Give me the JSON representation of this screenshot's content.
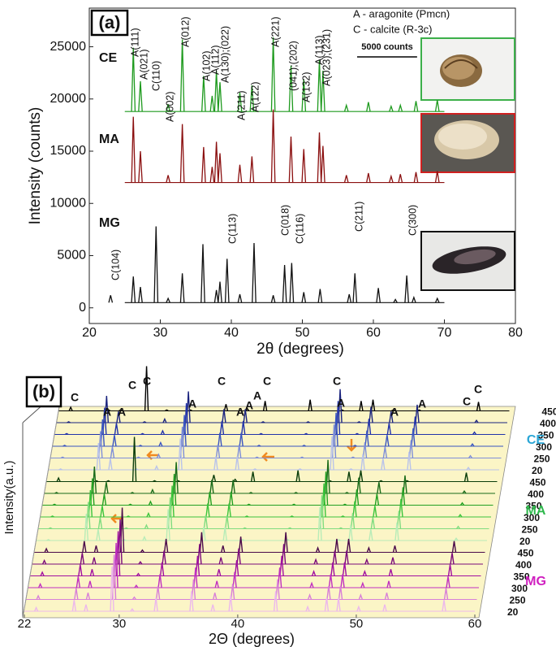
{
  "chart_data": [
    {
      "type": "line",
      "title": "(a)",
      "xlabel": "2θ (degrees)",
      "ylabel": "Intensity (counts)",
      "xlim": [
        20,
        80
      ],
      "xticks": [
        20,
        30,
        40,
        50,
        60,
        70,
        80
      ],
      "ylim": [
        -1500,
        28700
      ],
      "yticks": [
        0,
        5000,
        10000,
        15000,
        20000,
        25000
      ],
      "legend_notes": [
        "A - aragonite (Pmcn)",
        "C - calcite (R-3c)"
      ],
      "scale_bar": {
        "value": 5000,
        "label": "5000 counts"
      },
      "series": [
        {
          "name": "CE",
          "color": "#1e9a1e",
          "baseline": 18800,
          "x": [
            26.2,
            27.2,
            31.1,
            33.1,
            36.1,
            37.3,
            37.9,
            38.4,
            41.2,
            42.9,
            45.9,
            48.4,
            50.2,
            52.4,
            52.9,
            56.2,
            59.3,
            62.5,
            63.8,
            66.0,
            69.0
          ],
          "values": [
            24900,
            21700,
            19500,
            25700,
            22200,
            20300,
            22700,
            21600,
            20600,
            21300,
            25900,
            23200,
            21900,
            23700,
            22700,
            19400,
            19700,
            19300,
            19400,
            19800,
            19900
          ]
        },
        {
          "name": "MA",
          "color": "#8b1010",
          "baseline": 12000,
          "x": [
            26.2,
            27.2,
            31.1,
            33.1,
            36.1,
            37.3,
            37.9,
            38.4,
            41.2,
            42.9,
            45.9,
            48.4,
            50.2,
            52.4,
            52.9,
            56.2,
            59.3,
            62.5,
            63.8,
            66.0,
            69.0
          ],
          "values": [
            18300,
            15000,
            12700,
            17600,
            15400,
            13500,
            15900,
            14800,
            13700,
            14500,
            19000,
            16400,
            15200,
            16800,
            15500,
            12700,
            12900,
            12600,
            12800,
            13000,
            13100
          ]
        },
        {
          "name": "MG",
          "color": "#111111",
          "baseline": 500,
          "x": [
            23.0,
            26.2,
            27.2,
            29.4,
            31.1,
            33.1,
            36.0,
            37.9,
            38.4,
            39.4,
            41.2,
            43.2,
            45.9,
            47.5,
            48.5,
            50.2,
            52.5,
            56.6,
            57.4,
            60.7,
            63.1,
            64.7,
            65.7,
            69.0
          ],
          "values": [
            1200,
            3000,
            2000,
            7800,
            900,
            3300,
            6100,
            1700,
            2500,
            4700,
            1300,
            6200,
            1200,
            4100,
            4300,
            1500,
            1800,
            1300,
            3300,
            1900,
            800,
            3100,
            1000,
            900
          ]
        }
      ],
      "annotations": [
        "A(111)",
        "A(021)",
        "A(002)",
        "A(012)",
        "A(102)",
        "A(112)",
        "A(130);(022)",
        "A(211)",
        "A(122)",
        "A(221)",
        "(041);(202)",
        "A(132)",
        "A(113)",
        "A(023);(231)",
        "C(104)",
        "C(110)",
        "C(113)",
        "C(018)",
        "C(116)",
        "C(211)",
        "C(300)"
      ]
    },
    {
      "type": "waterfall",
      "title": "(b)",
      "xlabel": "2Θ (degrees)",
      "ylabel": "Intensity(a.u.)",
      "xlim": [
        22,
        60
      ],
      "xticks": [
        22,
        30,
        40,
        50,
        60
      ],
      "x": [
        23.0,
        26.2,
        27.2,
        29.4,
        31.1,
        33.1,
        36.1,
        37.9,
        39.4,
        43.2,
        45.9,
        47.5,
        48.5,
        50.2,
        52.4,
        57.4
      ],
      "groups": [
        {
          "name": "CE",
          "color": "#2aa6d6",
          "series": [
            {
              "name": "450",
              "color": "#000000",
              "values": [
                8,
                2,
                2,
                100,
                2,
                2,
                15,
                5,
                22,
                25,
                2,
                22,
                25,
                2,
                2,
                20
              ]
            },
            {
              "name": "400",
              "color": "#1a237e",
              "values": [
                2,
                60,
                25,
                2,
                8,
                70,
                30,
                30,
                2,
                2,
                75,
                2,
                35,
                25,
                40,
                5
              ]
            },
            {
              "name": "350",
              "color": "#2233aa",
              "values": [
                2,
                60,
                25,
                2,
                8,
                70,
                30,
                30,
                2,
                2,
                75,
                2,
                35,
                25,
                40,
                5
              ]
            },
            {
              "name": "300",
              "color": "#3a55c0",
              "values": [
                2,
                60,
                25,
                2,
                8,
                70,
                30,
                30,
                2,
                2,
                75,
                2,
                35,
                25,
                40,
                5
              ]
            },
            {
              "name": "250",
              "color": "#7f8fd8",
              "values": [
                2,
                60,
                25,
                2,
                8,
                70,
                30,
                30,
                2,
                2,
                75,
                2,
                35,
                25,
                40,
                5
              ]
            },
            {
              "name": "20",
              "color": "#b9c3ea",
              "values": [
                2,
                60,
                25,
                2,
                8,
                70,
                30,
                30,
                2,
                2,
                75,
                2,
                35,
                25,
                40,
                5
              ]
            }
          ]
        },
        {
          "name": "MA",
          "color": "#2eb84c",
          "series": [
            {
              "name": "450",
              "color": "#0a3d0a",
              "values": [
                8,
                2,
                2,
                100,
                2,
                2,
                15,
                5,
                22,
                25,
                2,
                22,
                25,
                2,
                2,
                20
              ]
            },
            {
              "name": "400",
              "color": "#1a6b1a",
              "values": [
                2,
                60,
                25,
                2,
                8,
                70,
                30,
                30,
                2,
                2,
                75,
                2,
                35,
                25,
                40,
                5
              ]
            },
            {
              "name": "350",
              "color": "#22a022",
              "values": [
                2,
                60,
                25,
                2,
                8,
                70,
                30,
                30,
                2,
                2,
                75,
                2,
                35,
                25,
                40,
                5
              ]
            },
            {
              "name": "300",
              "color": "#3cc43c",
              "values": [
                2,
                60,
                25,
                2,
                8,
                70,
                30,
                30,
                2,
                2,
                75,
                2,
                35,
                25,
                40,
                5
              ]
            },
            {
              "name": "250",
              "color": "#80dc80",
              "values": [
                2,
                60,
                25,
                2,
                8,
                70,
                30,
                30,
                2,
                2,
                75,
                2,
                35,
                25,
                40,
                5
              ]
            },
            {
              "name": "20",
              "color": "#b8ecb8",
              "values": [
                2,
                60,
                25,
                2,
                8,
                70,
                30,
                30,
                2,
                2,
                75,
                2,
                35,
                25,
                40,
                5
              ]
            }
          ]
        },
        {
          "name": "MG",
          "color": "#d020c0",
          "series": [
            {
              "name": "450",
              "color": "#4a0a4a",
              "values": [
                8,
                25,
                15,
                100,
                5,
                30,
                45,
                15,
                35,
                45,
                10,
                30,
                30,
                10,
                15,
                25
              ]
            },
            {
              "name": "400",
              "color": "#7a0a7a",
              "values": [
                8,
                25,
                15,
                100,
                5,
                30,
                45,
                15,
                35,
                45,
                10,
                30,
                30,
                10,
                15,
                25
              ]
            },
            {
              "name": "350",
              "color": "#a010a0",
              "values": [
                8,
                25,
                15,
                100,
                5,
                30,
                45,
                15,
                35,
                45,
                10,
                30,
                30,
                10,
                15,
                25
              ]
            },
            {
              "name": "300",
              "color": "#c030c0",
              "values": [
                8,
                25,
                15,
                100,
                5,
                30,
                45,
                15,
                35,
                45,
                10,
                30,
                30,
                10,
                15,
                25
              ]
            },
            {
              "name": "250",
              "color": "#d880d8",
              "values": [
                8,
                25,
                15,
                100,
                5,
                30,
                45,
                15,
                35,
                45,
                10,
                30,
                30,
                10,
                15,
                25
              ]
            },
            {
              "name": "20",
              "color": "#ecb8ec",
              "values": [
                8,
                25,
                15,
                100,
                5,
                30,
                45,
                15,
                35,
                45,
                10,
                30,
                30,
                10,
                15,
                25
              ]
            }
          ]
        }
      ],
      "annotations": [
        "C",
        "A",
        "A",
        "C",
        "C",
        "A",
        "C",
        "A",
        "A",
        "A",
        "C",
        "A",
        "C",
        "A",
        "A",
        "C",
        "C"
      ]
    }
  ]
}
